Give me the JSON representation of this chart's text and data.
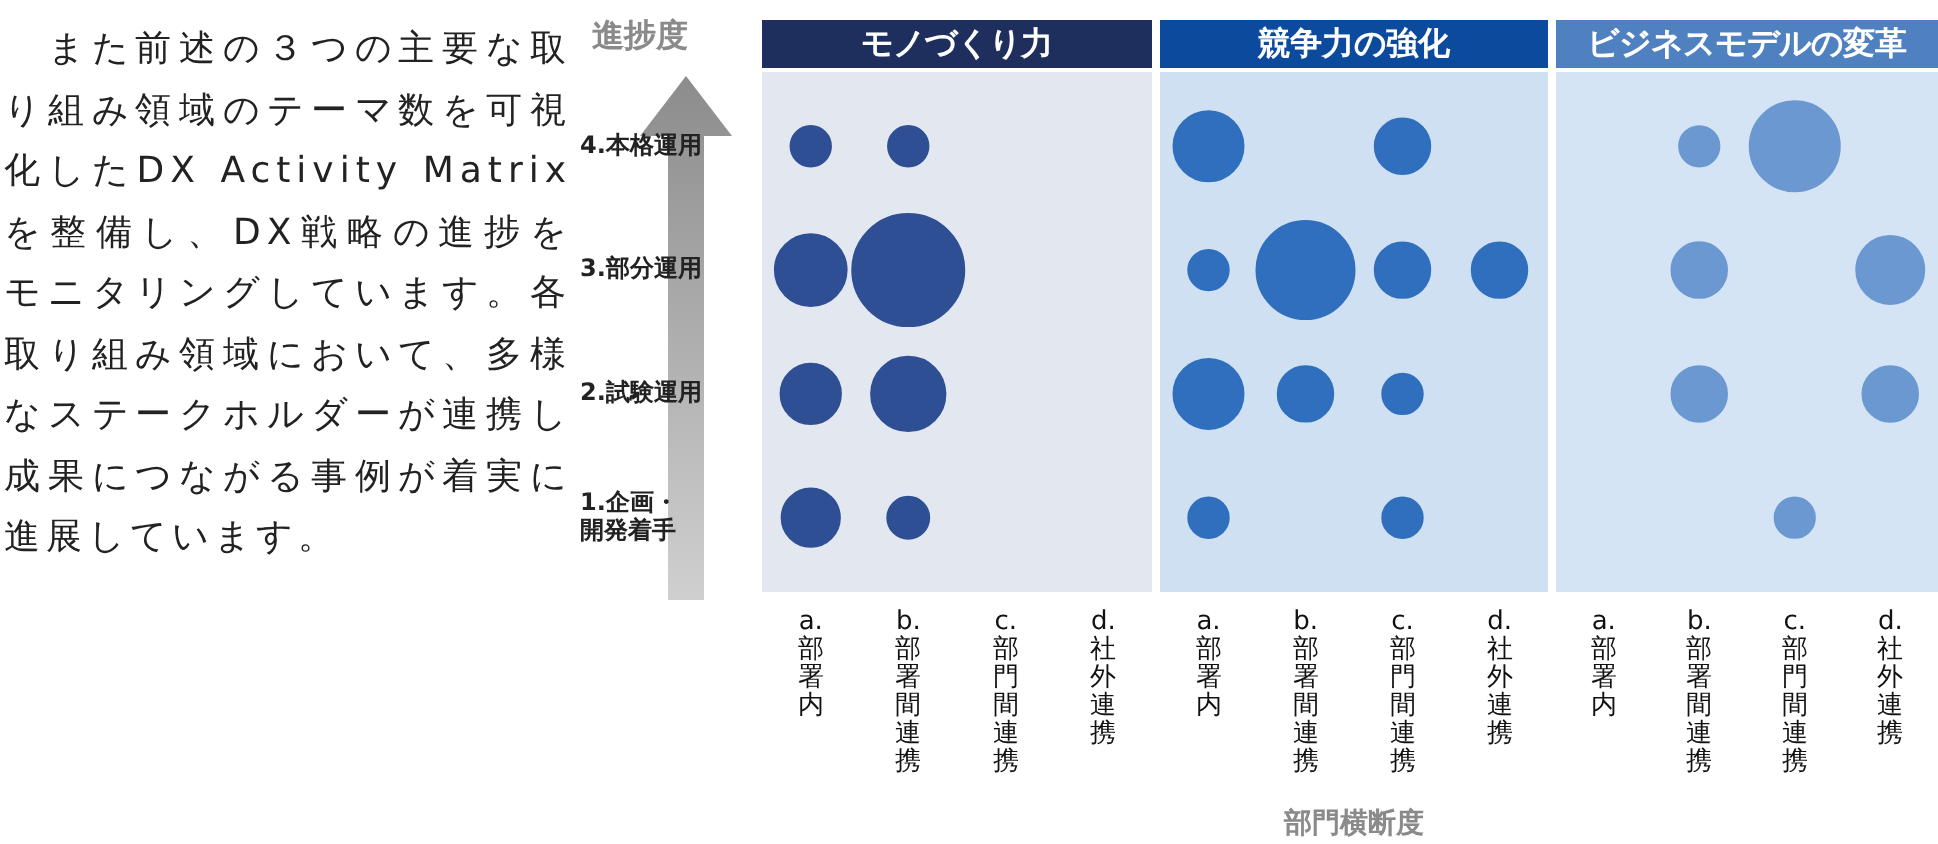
{
  "chart_data": [
    {
      "type": "bubble",
      "title": "モノづくり力",
      "ylabel": "進捗度",
      "annotations": [
        "　また前述の３つの主要な取り組み領域のテーマ数を可視化したDX Activity Matrixを整備し、DX戦略の進捗をモニタリングしています。各取り組み領域において、多様なステークホルダーが連携し成果につながる事例が着実に進展しています。"
      ],
      "categories": [
        "a.部署内",
        "b.部署間連携",
        "c.部門間連携",
        "d.社外連携"
      ],
      "ylim": [
        0.4,
        4.6
      ],
      "yticks": [
        {
          "value": 4,
          "label": "4.本格運用"
        },
        {
          "value": 3,
          "label": "3.部分運用"
        },
        {
          "value": 2,
          "label": "2.試験運用"
        },
        {
          "value": 1,
          "label": "1.企画・開発着手"
        }
      ],
      "series": [
        {
          "color": "#2f4f95",
          "x": [
            "a.部署内",
            "b.部署間連携",
            "a.部署内",
            "b.部署間連携",
            "a.部署内",
            "b.部署間連携",
            "a.部署内",
            "b.部署間連携"
          ],
          "values": [
            4,
            4,
            3,
            3,
            2,
            2,
            1,
            1
          ],
          "sizes": [
            0.13,
            0.13,
            0.41,
            1,
            0.29,
            0.44,
            0.27,
            0.14
          ]
        }
      ]
    },
    {
      "type": "bubble",
      "title": "競争力の強化",
      "xlabel": "部門横断度",
      "tick_labels": "x",
      "categories": [
        "a.部署内",
        "b.部署間連携",
        "c.部門間連携",
        "d.社外連携"
      ],
      "ylim": [
        0.4,
        4.6
      ],
      "yticks": [
        {
          "value": 4,
          "label": "4.本格運用"
        },
        {
          "value": 3,
          "label": "3.部分運用"
        },
        {
          "value": 2,
          "label": "2.試験運用"
        },
        {
          "value": 1,
          "label": "1.企画・開発着手"
        }
      ],
      "series": [
        {
          "color": "#2f6fbd",
          "x": [
            "a.部署内",
            "c.部門間連携",
            "a.部署内",
            "b.部署間連携",
            "c.部門間連携",
            "d.社外連携",
            "a.部署内",
            "b.部署間連携",
            "c.部門間連携",
            "a.部署内",
            "c.部門間連携"
          ],
          "values": [
            4,
            4,
            3,
            3,
            3,
            3,
            2,
            2,
            2,
            1,
            1
          ],
          "sizes": [
            0.51,
            0.32,
            0.17,
            1,
            0.32,
            0.32,
            0.51,
            0.32,
            0.17,
            0.17,
            0.17
          ]
        }
      ]
    },
    {
      "type": "bubble",
      "title": "ビジネスモデルの変革",
      "tick_labels": "x",
      "categories": [
        "a.部署内",
        "b.部署間連携",
        "c.部門間連携",
        "d.社外連携"
      ],
      "ylim": [
        0.4,
        4.6
      ],
      "yticks": [
        {
          "value": 4,
          "label": "4.本格運用"
        },
        {
          "value": 3,
          "label": "3.部分運用"
        },
        {
          "value": 2,
          "label": "2.試験運用"
        },
        {
          "value": 1,
          "label": "1.企画・開発着手"
        }
      ],
      "series": [
        {
          "color": "#6b98d0",
          "x": [
            "b.部署間連携",
            "c.部門間連携",
            "b.部署間連携",
            "d.社外連携",
            "b.部署間連携",
            "d.社外連携",
            "c.部門間連携"
          ],
          "values": [
            4,
            4,
            3,
            3,
            2,
            2,
            1
          ],
          "sizes": [
            0.2,
            1,
            0.38,
            0.57,
            0.38,
            0.38,
            0.2
          ]
        }
      ]
    }
  ]
}
